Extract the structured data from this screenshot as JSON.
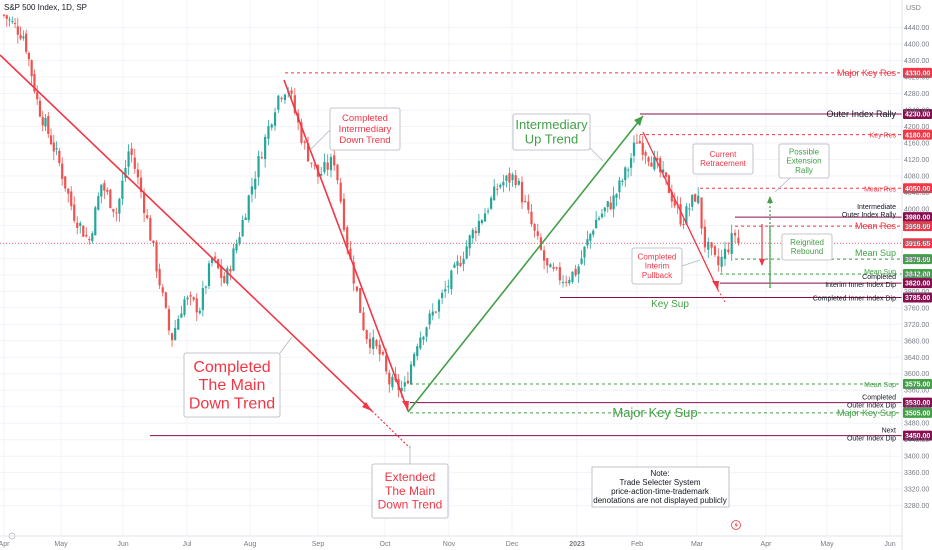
{
  "chart_data": {
    "type": "candlestick",
    "title": "S&P 500 Index, 1D, SP",
    "currency": "USD",
    "ylim": [
      3250,
      4500
    ],
    "y_ticks": [
      4440,
      4400,
      4360,
      4320,
      4280,
      4240,
      4200,
      4160,
      4120,
      4080,
      4040,
      4000,
      3960,
      3920,
      3880,
      3840,
      3800,
      3760,
      3720,
      3680,
      3640,
      3600,
      3560,
      3520,
      3480,
      3440,
      3400,
      3360,
      3320,
      3280
    ],
    "x_ticks": [
      "Apr",
      "May",
      "Jun",
      "Jul",
      "Aug",
      "Sep",
      "Oct",
      "Nov",
      "Dec",
      "2023",
      "Feb",
      "Mar",
      "Apr",
      "May",
      "Jun"
    ],
    "colors": {
      "up": "#26a69a",
      "down": "#ef5350",
      "red": "#f23645",
      "green": "#43a047",
      "purple": "#880e4f"
    },
    "key_points": [
      {
        "x": 0.0,
        "y": 4470
      },
      {
        "x": 0.35,
        "y": 4420
      },
      {
        "x": 0.6,
        "y": 4250
      },
      {
        "x": 0.95,
        "y": 4120
      },
      {
        "x": 1.2,
        "y": 3990
      },
      {
        "x": 1.45,
        "y": 3920
      },
      {
        "x": 1.65,
        "y": 4060
      },
      {
        "x": 1.9,
        "y": 3990
      },
      {
        "x": 2.1,
        "y": 4150
      },
      {
        "x": 2.3,
        "y": 4030
      },
      {
        "x": 2.5,
        "y": 3880
      },
      {
        "x": 2.75,
        "y": 3680
      },
      {
        "x": 2.95,
        "y": 3780
      },
      {
        "x": 3.2,
        "y": 3760
      },
      {
        "x": 3.4,
        "y": 3880
      },
      {
        "x": 3.6,
        "y": 3820
      },
      {
        "x": 3.85,
        "y": 3950
      },
      {
        "x": 4.1,
        "y": 4100
      },
      {
        "x": 4.4,
        "y": 4270
      },
      {
        "x": 4.55,
        "y": 4300
      },
      {
        "x": 4.8,
        "y": 4150
      },
      {
        "x": 5.0,
        "y": 4080
      },
      {
        "x": 5.25,
        "y": 4120
      },
      {
        "x": 5.45,
        "y": 3900
      },
      {
        "x": 5.7,
        "y": 3700
      },
      {
        "x": 5.95,
        "y": 3640
      },
      {
        "x": 6.05,
        "y": 3580
      },
      {
        "x": 6.3,
        "y": 3560
      },
      {
        "x": 6.5,
        "y": 3680
      },
      {
        "x": 6.8,
        "y": 3760
      },
      {
        "x": 7.1,
        "y": 3850
      },
      {
        "x": 7.4,
        "y": 3950
      },
      {
        "x": 7.6,
        "y": 4000
      },
      {
        "x": 7.8,
        "y": 4060
      },
      {
        "x": 8.05,
        "y": 4080
      },
      {
        "x": 8.3,
        "y": 3960
      },
      {
        "x": 8.55,
        "y": 3850
      },
      {
        "x": 8.8,
        "y": 3830
      },
      {
        "x": 9.0,
        "y": 3850
      },
      {
        "x": 9.3,
        "y": 3970
      },
      {
        "x": 9.6,
        "y": 4020
      },
      {
        "x": 9.85,
        "y": 4100
      },
      {
        "x": 10.0,
        "y": 4170
      },
      {
        "x": 10.25,
        "y": 4120
      },
      {
        "x": 10.5,
        "y": 4060
      },
      {
        "x": 10.75,
        "y": 3970
      },
      {
        "x": 11.0,
        "y": 4040
      },
      {
        "x": 11.1,
        "y": 3920
      },
      {
        "x": 11.3,
        "y": 3860
      },
      {
        "x": 11.55,
        "y": 3940
      },
      {
        "x": 11.6,
        "y": 3916
      }
    ],
    "levels": [
      {
        "label": "Major Key Res",
        "value": 4330,
        "color": "#f23645",
        "style": "dashed",
        "tag": "4330.00",
        "tag_bg": "#f23645",
        "size": 9
      },
      {
        "label": "Outer Index Rally",
        "value": 4230,
        "color": "#880e4f",
        "style": "solid",
        "tag": "4230.00",
        "tag_bg": "#880e4f",
        "size": 9
      },
      {
        "label": "Key Res",
        "value": 4180,
        "color": "#f23645",
        "style": "dashed",
        "tag": "4180.00",
        "tag_bg": "#f23645",
        "size": 7
      },
      {
        "label": "Mean Res",
        "value": 4050,
        "color": "#f23645",
        "style": "dashed",
        "tag": "4050.00",
        "tag_bg": "#f23645",
        "size": 7
      },
      {
        "label": "Intermediate Outer Index Rally",
        "value": 3980,
        "color": "#880e4f",
        "style": "solid",
        "tag": "3980.00",
        "tag_bg": "#880e4f",
        "size": 7
      },
      {
        "label": "Mean Res",
        "value": 3958,
        "color": "#f23645",
        "style": "dashed",
        "tag": "3958.00",
        "tag_bg": "#f23645",
        "size": 9
      },
      {
        "label": "",
        "value": 3916.65,
        "color": "#f23645",
        "style": "dotted",
        "tag": "3916.65",
        "tag_bg": "#f23645",
        "size": 7
      },
      {
        "label": "Mean Sup",
        "value": 3878,
        "color": "#43a047",
        "style": "dashed",
        "tag": "3878.00",
        "tag_bg": "#43a047",
        "size": 9
      },
      {
        "label": "Mean Sup",
        "value": 3842,
        "color": "#43a047",
        "style": "dashed",
        "tag": "3842.00",
        "tag_bg": "#43a047",
        "size": 7
      },
      {
        "label": "Completed Interim Inner Index Dip",
        "value": 3820,
        "color": "#880e4f",
        "style": "solid",
        "tag": "3820.00",
        "tag_bg": "#880e4f",
        "size": 7
      },
      {
        "label": "Completed Inner Index Dip",
        "value": 3785,
        "color": "#880e4f",
        "style": "solid",
        "tag": "3785.00",
        "tag_bg": "#880e4f",
        "size": 7
      },
      {
        "label": "Mean Sup",
        "value": 3575,
        "color": "#43a047",
        "style": "dashed",
        "tag": "3575.00",
        "tag_bg": "#43a047",
        "size": 7
      },
      {
        "label": "Completed Outer Index Dip",
        "value": 3530,
        "color": "#880e4f",
        "style": "solid",
        "tag": "3530.00",
        "tag_bg": "#880e4f",
        "size": 7
      },
      {
        "label": "Major Key Sup",
        "value": 3505,
        "color": "#43a047",
        "style": "dashed",
        "tag": "3505.00",
        "tag_bg": "#43a047",
        "size": 9
      },
      {
        "label": "Next Outer Index Dip",
        "value": 3450,
        "color": "#880e4f",
        "style": "solid",
        "tag": "3450.00",
        "tag_bg": "#880e4f",
        "size": 7
      }
    ],
    "callouts": [
      {
        "text": "Completed Intermediary Down Trend",
        "color": "#f23645"
      },
      {
        "text": "Intermediary Up Trend",
        "color": "#43a047"
      },
      {
        "text": "Completed The Main Down Trend",
        "color": "#f23645"
      },
      {
        "text": "Extended The Main Down Trend",
        "color": "#f23645"
      },
      {
        "text": "Current Retracement",
        "color": "#f23645"
      },
      {
        "text": "Possible Extension Rally",
        "color": "#43a047"
      },
      {
        "text": "Reignited Rebound",
        "color": "#43a047"
      },
      {
        "text": "Completed Interim Pullback",
        "color": "#f23645"
      },
      {
        "text": "Key Sup",
        "color": "#43a047"
      },
      {
        "text": "Major Key Sup",
        "color": "#43a047"
      },
      {
        "text": "Note: Trade Selecter System price-action-time-trademark denotations are not displayed publicly",
        "color": "#131722"
      }
    ]
  }
}
